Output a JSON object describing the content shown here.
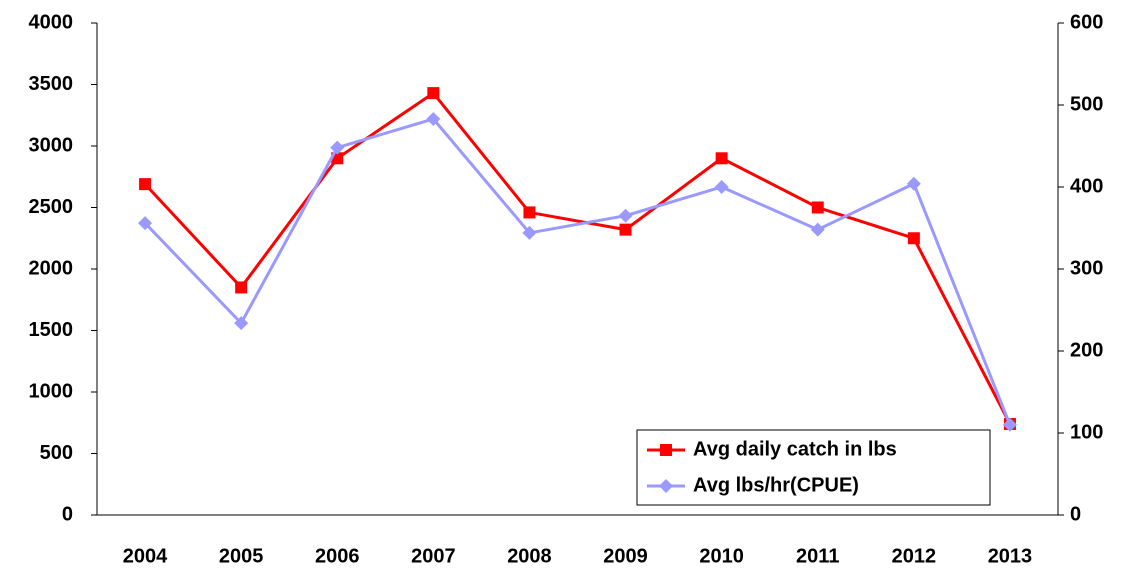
{
  "chart_data": {
    "type": "line",
    "categories": [
      "2004",
      "2005",
      "2006",
      "2007",
      "2008",
      "2009",
      "2010",
      "2011",
      "2012",
      "2013"
    ],
    "series": [
      {
        "name": "Avg daily catch in lbs",
        "color": "#ff0000",
        "marker": "square",
        "values": [
          2690,
          1850,
          2900,
          3430,
          2460,
          2320,
          2900,
          2500,
          2250,
          740
        ]
      },
      {
        "name": "Avg lbs/hr(CPUE)",
        "color": "#9999ff",
        "marker": "diamond",
        "axis": "y2",
        "values": [
          356,
          234,
          448,
          483,
          344,
          365,
          400,
          348,
          404,
          110
        ]
      }
    ],
    "ylim": [
      0,
      4000
    ],
    "yticks": [
      0,
      500,
      1000,
      1500,
      2000,
      2500,
      3000,
      3500,
      4000
    ],
    "y2lim": [
      0,
      600
    ],
    "y2ticks": [
      0,
      100,
      200,
      300,
      400,
      500,
      600
    ],
    "grid": false,
    "legend": "lower right"
  }
}
